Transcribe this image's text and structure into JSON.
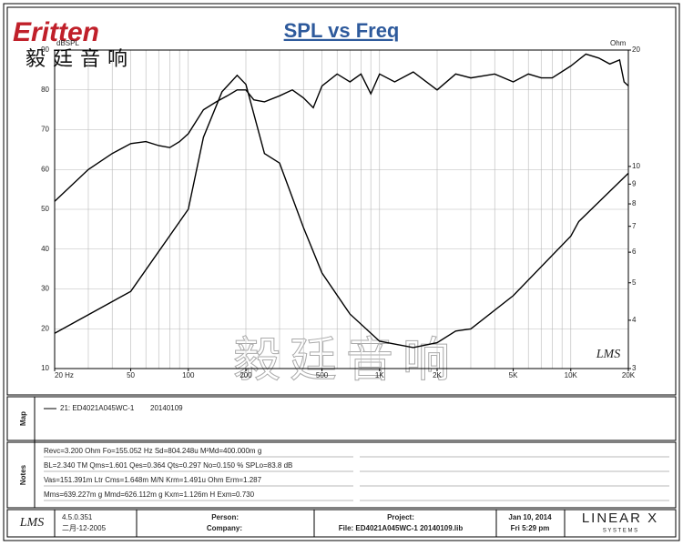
{
  "chart_data": {
    "type": "line",
    "title": "SPL vs Freq",
    "ylabel": "dBSPL",
    "y2label": "Ohm",
    "xlog": true,
    "y2log": true,
    "grid": true,
    "xlim": [
      20,
      20000
    ],
    "ylim": [
      10,
      90
    ],
    "y2lim": [
      3,
      20
    ],
    "xticks": [
      {
        "value": 20,
        "label": "20 Hz"
      },
      50,
      100,
      200,
      500,
      {
        "value": 1000,
        "label": "1K"
      },
      {
        "value": 2000,
        "label": "2K"
      },
      {
        "value": 5000,
        "label": "5K"
      },
      {
        "value": 10000,
        "label": "10K"
      },
      {
        "value": 20000,
        "label": "20K"
      }
    ],
    "xgrid": [
      20,
      30,
      40,
      50,
      60,
      70,
      80,
      90,
      100,
      200,
      300,
      400,
      500,
      600,
      700,
      800,
      900,
      1000,
      2000,
      3000,
      4000,
      5000,
      6000,
      7000,
      8000,
      9000,
      10000,
      20000
    ],
    "yticks": [
      10,
      20,
      30,
      40,
      50,
      60,
      70,
      80,
      90
    ],
    "y2ticks": [
      3,
      4,
      5,
      6,
      7,
      8,
      9,
      10,
      20
    ],
    "series": [
      {
        "name": "21: ED4021A045WC-1",
        "color": "#000000",
        "x": [
          20,
          30,
          40,
          50,
          60,
          70,
          80,
          90,
          100,
          120,
          140,
          160,
          180,
          200,
          220,
          250,
          300,
          350,
          400,
          450,
          500,
          600,
          700,
          800,
          900,
          1000,
          1200,
          1500,
          2000,
          2500,
          3000,
          4000,
          5000,
          6000,
          7000,
          8000,
          10000,
          12000,
          14000,
          16000,
          18000,
          19000,
          20000
        ],
        "values": [
          52,
          60,
          64,
          66.5,
          67,
          66,
          65.5,
          67,
          69,
          75,
          77,
          78.5,
          80,
          80,
          77.5,
          77,
          78.5,
          80,
          78,
          75.5,
          81,
          84,
          82,
          84,
          79,
          84,
          82,
          84.5,
          80,
          84,
          83,
          84,
          82,
          84,
          83,
          83,
          86,
          89,
          88,
          86.5,
          87.5,
          82,
          81
        ]
      },
      {
        "color": "#000000",
        "axis": "y2",
        "x": [
          20,
          50,
          100,
          120,
          150,
          180,
          200,
          250,
          300,
          400,
          500,
          700,
          1000,
          1500,
          2000,
          2500,
          3000,
          5000,
          10000,
          11000,
          20000
        ],
        "values": [
          3.7,
          4.75,
          7.75,
          11.9,
          15.6,
          17.2,
          16.3,
          10.8,
          10.2,
          6.95,
          5.3,
          4.15,
          3.53,
          3.4,
          3.5,
          3.75,
          3.8,
          4.63,
          6.6,
          7.2,
          9.6
        ]
      }
    ]
  },
  "header": {
    "logo": "Eritten",
    "logo_cn": "毅廷音响",
    "watermark": "毅廷音响",
    "plot_logo": "LMS"
  },
  "map": {
    "label": "Map",
    "date": "20140109"
  },
  "notes": {
    "label": "Notes",
    "lines": [
      "Revc=3.200 Ohm  Fo=155.052 Hz  Sd=804.248u M²Md=400.000m g",
      "BL=2.340 TM  Qms=1.601  Qes=0.364  Qts=0.297  No=0.150 %  SPLo=83.8 dB",
      "Vas=151.391m Ltr  Cms=1.648m M/N  Krm=1.491u Ohm  Erm=1.287",
      "Mms=639.227m g  Mmd=626.112m g  Kxm=1.126m H  Exm=0.730"
    ]
  },
  "footer": {
    "logo": "LMS",
    "version": "4.5.0.351",
    "version_date": "二月-12-2005",
    "person": "Person:",
    "company": "Company:",
    "project": "Project:",
    "file": "File: ED4021A045WC-1  20140109.lib",
    "date": "Jan 10, 2014",
    "time": "Fri  5:29 pm",
    "brand": "LINEAR X",
    "brand_sub": "S Y S T E M S"
  }
}
